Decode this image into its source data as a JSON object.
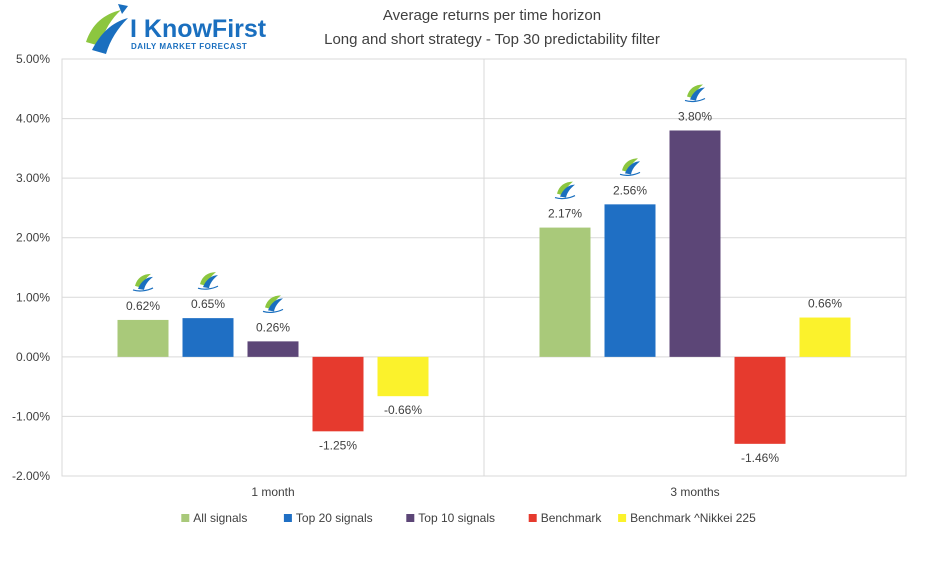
{
  "logo": {
    "name": "I KnowFirst",
    "tagline": "Daily Market Forecast"
  },
  "chart_data": {
    "type": "bar",
    "title": "Average returns per time horizon",
    "subtitle": "Long and short strategy - Top 30 predictability filter",
    "categories": [
      "1 month",
      "3 months"
    ],
    "ylim": [
      -2.0,
      5.0
    ],
    "yticks": [
      "5.00%",
      "4.00%",
      "3.00%",
      "2.00%",
      "1.00%",
      "0.00%",
      "-1.00%",
      "-2.00%"
    ],
    "grid": true,
    "legend_position": "bottom",
    "series": [
      {
        "name": "All signals",
        "color": "#a9c97a",
        "values": [
          0.62,
          2.17
        ],
        "labels": [
          "0.62%",
          "2.17%"
        ],
        "badge": [
          true,
          true
        ]
      },
      {
        "name": "Top 20 signals",
        "color": "#1f6fc4",
        "values": [
          0.65,
          2.56
        ],
        "labels": [
          "0.65%",
          "2.56%"
        ],
        "badge": [
          true,
          true
        ]
      },
      {
        "name": "Top 10 signals",
        "color": "#5c4677",
        "values": [
          0.26,
          3.8
        ],
        "labels": [
          "0.26%",
          "3.80%"
        ],
        "badge": [
          true,
          true
        ]
      },
      {
        "name": "Benchmark",
        "color": "#e63a2e",
        "values": [
          -1.25,
          -1.46
        ],
        "labels": [
          "-1.25%",
          "-1.46%"
        ],
        "badge": [
          false,
          false
        ]
      },
      {
        "name": "Benchmark ^Nikkei 225",
        "color": "#fbf22c",
        "values": [
          -0.66,
          0.66
        ],
        "labels": [
          "-0.66%",
          "0.66%"
        ],
        "badge": [
          false,
          false
        ]
      }
    ]
  }
}
